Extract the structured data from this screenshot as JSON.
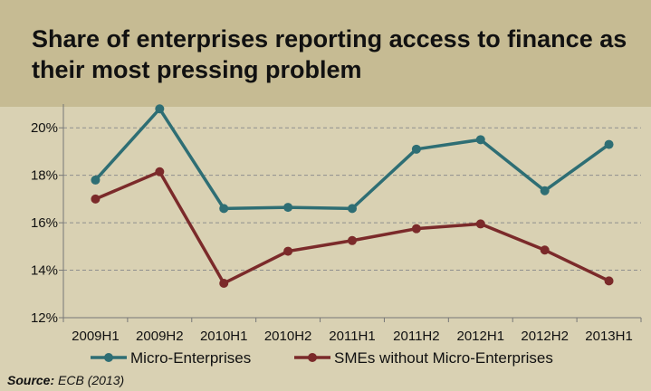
{
  "chart_data": {
    "type": "line",
    "title": "Share of enterprises reporting access to finance as their most pressing problem",
    "categories": [
      "2009H1",
      "2009H2",
      "2010H1",
      "2010H2",
      "2011H1",
      "2011H2",
      "2012H1",
      "2012H2",
      "2013H1"
    ],
    "series": [
      {
        "name": "Micro-Enterprises",
        "color": "#2e6e74",
        "values": [
          17.8,
          20.8,
          16.6,
          16.65,
          16.6,
          19.1,
          19.5,
          17.35,
          19.3
        ]
      },
      {
        "name": "SMEs without Micro-Enterprises",
        "color": "#7b2a2a",
        "values": [
          17.0,
          18.15,
          13.45,
          14.8,
          15.25,
          15.75,
          15.95,
          14.85,
          13.55
        ]
      }
    ],
    "ylim": [
      12,
      21
    ],
    "yticks": [
      "12%",
      "14%",
      "16%",
      "18%",
      "20%"
    ],
    "grid": true,
    "legend_position": "bottom"
  },
  "source_label": "Source:",
  "source_text": "ECB (2013)"
}
